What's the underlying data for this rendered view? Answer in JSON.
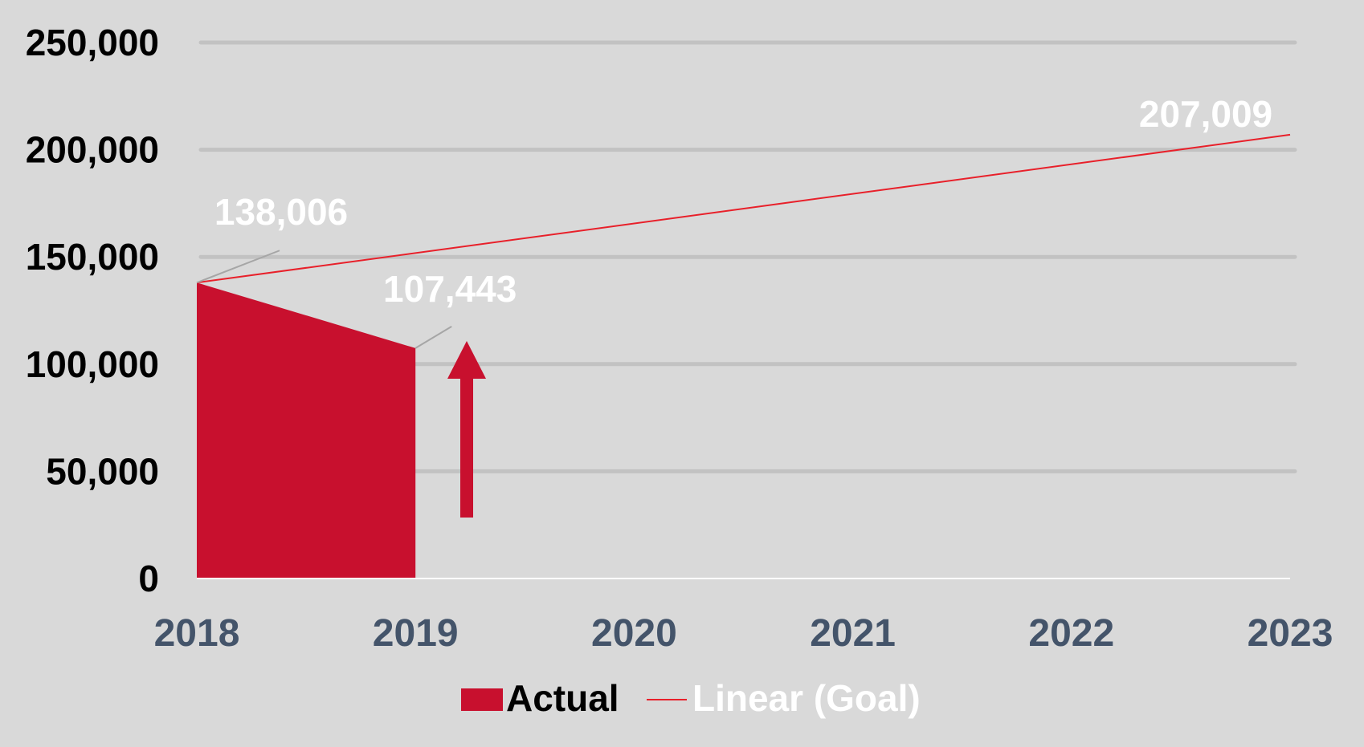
{
  "colors": {
    "background": "#d9d9d9",
    "actual": "#c8102e",
    "goal": "#e8202a",
    "gridline": "#bfbfbf",
    "y_tick_text": "#000000",
    "x_tick_text": "#44546a",
    "data_label_text": "#ffffff",
    "leader_line": "#a6a6a6"
  },
  "icons": {
    "increase_arrow": "up-arrow-icon"
  },
  "chart_data": {
    "type": "area",
    "title": "",
    "xlabel": "",
    "ylabel": "",
    "categories": [
      "2018",
      "2019",
      "2020",
      "2021",
      "2022",
      "2023"
    ],
    "ylim": [
      0,
      250000
    ],
    "y_ticks": [
      "0",
      "50,000",
      "100,000",
      "150,000",
      "200,000",
      "250,000"
    ],
    "y_tick_values": [
      0,
      50000,
      100000,
      150000,
      200000,
      250000
    ],
    "grid": true,
    "legend_position": "bottom",
    "series": [
      {
        "name": "Actual",
        "type": "area",
        "x": [
          "2018",
          "2019"
        ],
        "values": [
          138006,
          107443
        ],
        "labels": [
          "138,006",
          "107,443"
        ]
      },
      {
        "name": "Linear (Goal)",
        "type": "line",
        "x": [
          "2018",
          "2023"
        ],
        "values": [
          138006,
          207009
        ],
        "labels": [
          "",
          "207,009"
        ]
      }
    ],
    "legend": [
      "Actual",
      "Linear (Goal)"
    ]
  }
}
